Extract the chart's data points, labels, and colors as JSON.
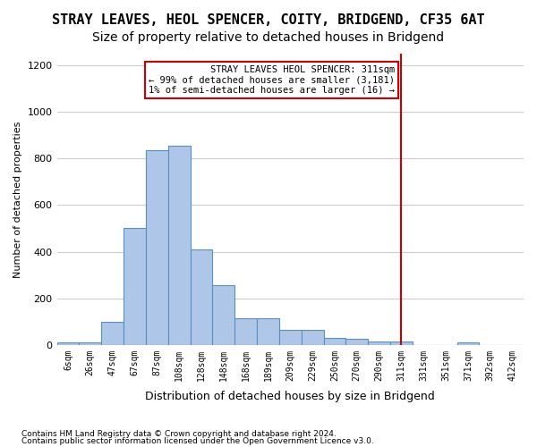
{
  "title": "STRAY LEAVES, HEOL SPENCER, COITY, BRIDGEND, CF35 6AT",
  "subtitle": "Size of property relative to detached houses in Bridgend",
  "xlabel": "Distribution of detached houses by size in Bridgend",
  "ylabel": "Number of detached properties",
  "footer1": "Contains HM Land Registry data © Crown copyright and database right 2024.",
  "footer2": "Contains public sector information licensed under the Open Government Licence v3.0.",
  "bin_labels": [
    "6sqm",
    "26sqm",
    "47sqm",
    "67sqm",
    "87sqm",
    "108sqm",
    "128sqm",
    "148sqm",
    "168sqm",
    "189sqm",
    "209sqm",
    "229sqm",
    "250sqm",
    "270sqm",
    "290sqm",
    "311sqm",
    "331sqm",
    "351sqm",
    "371sqm",
    "392sqm",
    "412sqm"
  ],
  "bar_values": [
    10,
    12,
    100,
    500,
    835,
    855,
    410,
    255,
    115,
    115,
    65,
    65,
    30,
    25,
    15,
    15,
    0,
    0,
    12,
    0,
    0
  ],
  "bar_color": "#aec6e8",
  "bar_edge_color": "#5a8fc2",
  "grid_color": "#cccccc",
  "vline_x": 15,
  "vline_color": "#cc0000",
  "annotation_text": "STRAY LEAVES HEOL SPENCER: 311sqm\n← 99% of detached houses are smaller (3,181)\n1% of semi-detached houses are larger (16) →",
  "annotation_box_color": "#ffffff",
  "annotation_box_edge": "#cc0000",
  "ylim": [
    0,
    1250
  ],
  "yticks": [
    0,
    200,
    400,
    600,
    800,
    1000,
    1200
  ],
  "background_color": "#ffffff",
  "title_fontsize": 11,
  "subtitle_fontsize": 10
}
